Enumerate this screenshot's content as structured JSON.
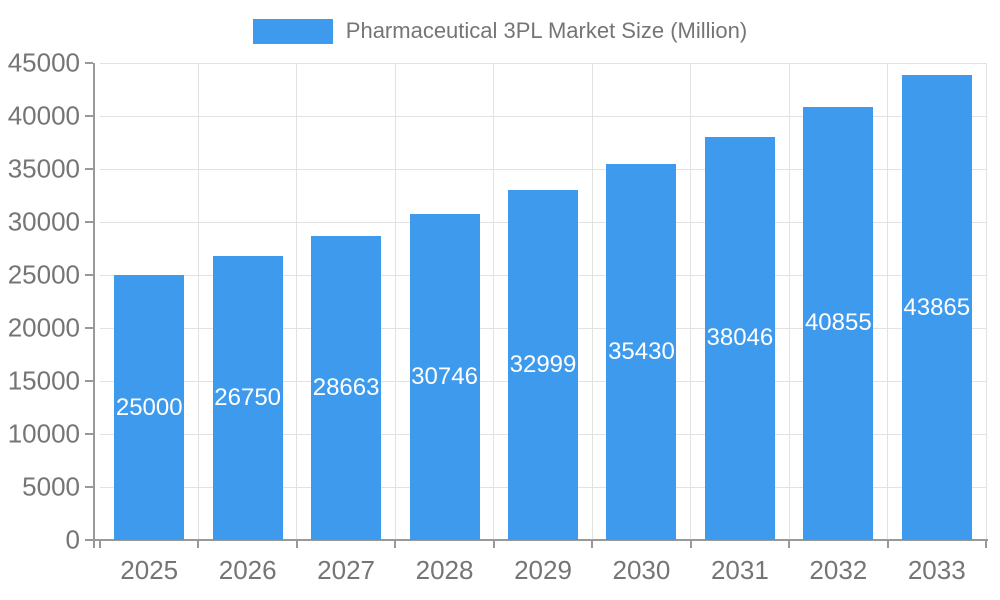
{
  "chart_data": {
    "type": "bar",
    "title": "Pharmaceutical 3PL Market Size (Million)",
    "legend": [
      "Pharmaceutical 3PL Market Size (Million)"
    ],
    "legend_position": "top-center",
    "categories": [
      "2025",
      "2026",
      "2027",
      "2028",
      "2029",
      "2030",
      "2031",
      "2032",
      "2033"
    ],
    "values": [
      25000,
      26750,
      28663,
      30746,
      32999,
      35430,
      38046,
      40855,
      43865
    ],
    "xlabel": "",
    "ylabel": "",
    "ylim": [
      0,
      45000
    ],
    "ytick_step": 5000,
    "yticks": [
      0,
      5000,
      10000,
      15000,
      20000,
      25000,
      30000,
      35000,
      40000,
      45000
    ],
    "grid": true,
    "value_label_position": "inside-center",
    "colors": {
      "bar": "#3D9AEC",
      "value_label": "#FFFFFF",
      "axis_text": "#757575",
      "axis_line": "#999999",
      "gridline": "#E2E2E2",
      "background": "#FFFFFF"
    }
  }
}
